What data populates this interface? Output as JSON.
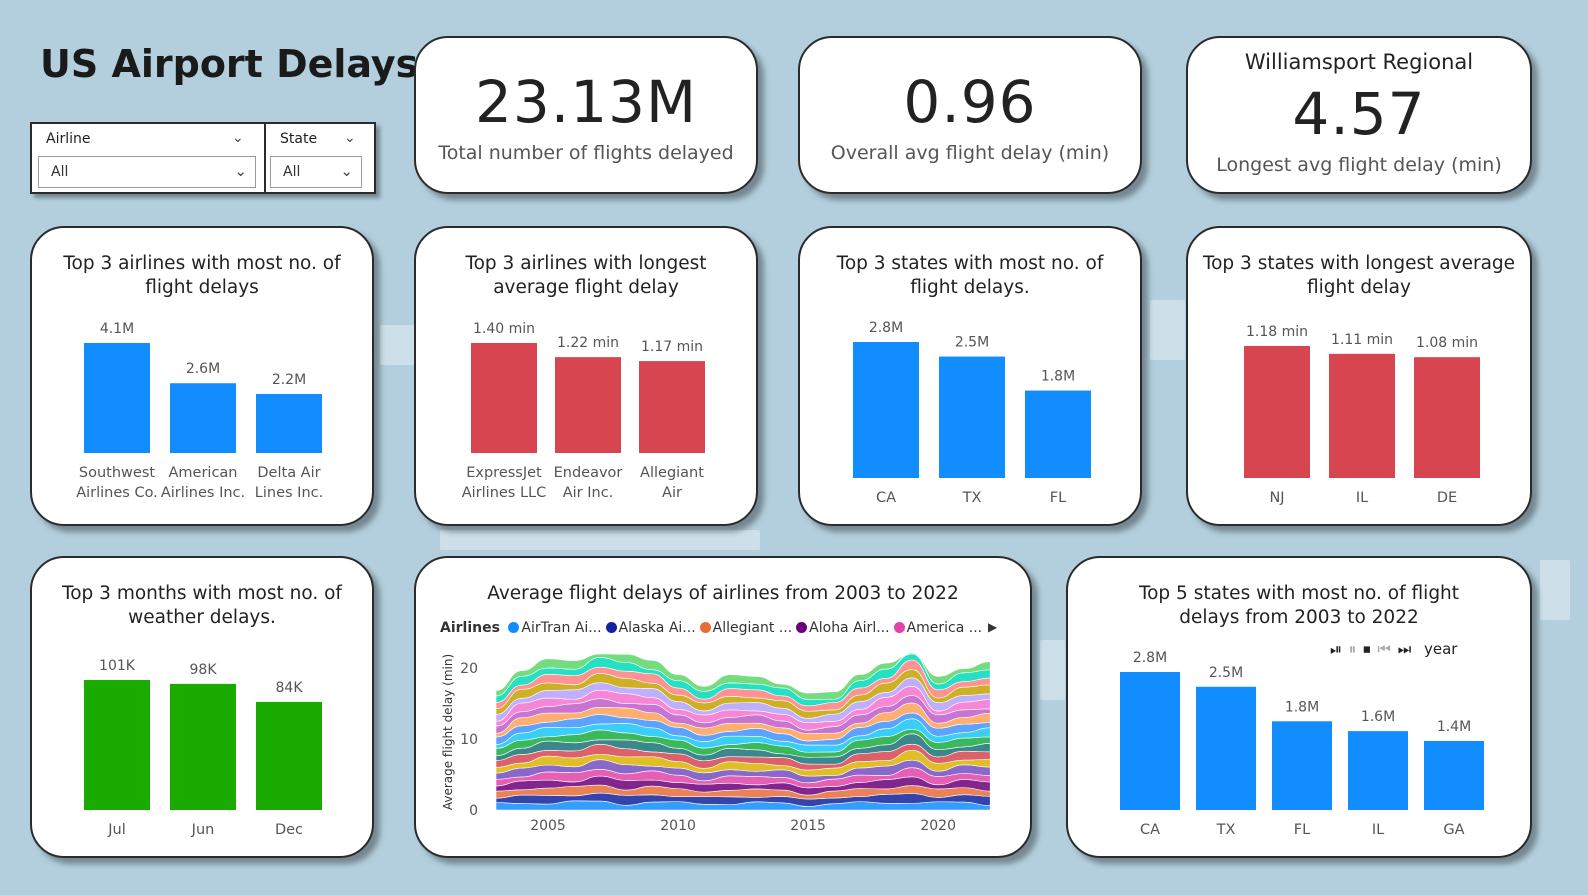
{
  "title": "US Airport Delays",
  "slicers": {
    "airline": {
      "label": "Airline",
      "value": "All"
    },
    "state": {
      "label": "State",
      "value": "All"
    }
  },
  "kpis": {
    "total": {
      "value": "23.13M",
      "label": "Total number of flights delayed"
    },
    "avg": {
      "value": "0.96",
      "label": "Overall avg flight delay (min)"
    },
    "longest": {
      "airport": "Williamsport Regional",
      "value": "4.57",
      "label": "Longest avg flight delay (min)"
    }
  },
  "colors": {
    "blue": "#118dff",
    "red": "#d64550",
    "green": "#1aab00"
  },
  "icons": [
    "play-icon",
    "pause-icon",
    "stop-icon",
    "previous-icon",
    "next-icon",
    "chevron-down-icon",
    "chevron-right-icon"
  ],
  "charts": {
    "top_airlines_delays": {
      "title": "Top 3 airlines with most no. of flight delays",
      "color": "#118dff",
      "chart_data": {
        "type": "bar",
        "categories": [
          "Southwest Airlines Co.",
          "American Airlines Inc.",
          "Delta Air Lines Inc."
        ],
        "category_lines": [
          [
            "Southwest",
            "Airlines Co."
          ],
          [
            "American",
            "Airlines Inc."
          ],
          [
            "Delta Air",
            "Lines Inc."
          ]
        ],
        "values": [
          4.1,
          2.6,
          2.2
        ],
        "labels": [
          "4.1M",
          "2.6M",
          "2.2M"
        ],
        "ylim": [
          0,
          4.1
        ]
      }
    },
    "top_airlines_longest": {
      "title": "Top 3 airlines with longest average flight delay",
      "color": "#d64550",
      "chart_data": {
        "type": "bar",
        "categories": [
          "ExpressJet Airlines LLC",
          "Endeavor Air Inc.",
          "Allegiant Air"
        ],
        "category_lines": [
          [
            "ExpressJet",
            "Airlines LLC"
          ],
          [
            "Endeavor",
            "Air Inc."
          ],
          [
            "Allegiant",
            "Air"
          ]
        ],
        "values": [
          1.4,
          1.22,
          1.17
        ],
        "labels": [
          "1.40 min",
          "1.22 min",
          "1.17 min"
        ],
        "ylim": [
          0,
          1.4
        ]
      }
    },
    "top_states_delays": {
      "title": "Top 3 states with most no. of flight delays.",
      "color": "#118dff",
      "chart_data": {
        "type": "bar",
        "categories": [
          "CA",
          "TX",
          "FL"
        ],
        "values": [
          2.8,
          2.5,
          1.8
        ],
        "labels": [
          "2.8M",
          "2.5M",
          "1.8M"
        ],
        "ylim": [
          0,
          2.8
        ]
      }
    },
    "top_states_longest": {
      "title": "Top 3 states with longest average flight delay",
      "color": "#d64550",
      "chart_data": {
        "type": "bar",
        "categories": [
          "NJ",
          "IL",
          "DE"
        ],
        "values": [
          1.18,
          1.11,
          1.08
        ],
        "labels": [
          "1.18 min",
          "1.11 min",
          "1.08 min"
        ],
        "ylim": [
          0,
          1.18
        ]
      }
    },
    "top_months_weather": {
      "title": "Top 3 months with most no. of weather delays.",
      "color": "#1aab00",
      "chart_data": {
        "type": "bar",
        "categories": [
          "Jul",
          "Jun",
          "Dec"
        ],
        "values": [
          101,
          98,
          84
        ],
        "labels": [
          "101K",
          "98K",
          "84K"
        ],
        "ylim": [
          0,
          101
        ]
      }
    },
    "airline_trend": {
      "title": "Average flight delays of airlines from 2003 to 2022",
      "legend_title": "Airlines",
      "legend": [
        {
          "name": "AirTran Ai...",
          "color": "#118dff"
        },
        {
          "name": "Alaska Ai...",
          "color": "#12239e"
        },
        {
          "name": "Allegiant ...",
          "color": "#e66c37"
        },
        {
          "name": "Aloha Airl...",
          "color": "#6b007b"
        },
        {
          "name": "America ...",
          "color": "#e044a7"
        }
      ],
      "chart_data": {
        "type": "area",
        "stacked": true,
        "ylabel": "Average flight delay (min)",
        "ylim": [
          0,
          22
        ],
        "yticks": [
          "0",
          "10",
          "20"
        ],
        "xticks": [
          "2005",
          "2010",
          "2015",
          "2020"
        ],
        "x": [
          2003,
          2004,
          2005,
          2006,
          2007,
          2008,
          2009,
          2010,
          2011,
          2012,
          2013,
          2014,
          2015,
          2016,
          2017,
          2018,
          2019,
          2020,
          2021,
          2022
        ],
        "stack_total": [
          15,
          18,
          19,
          19,
          20,
          20,
          19,
          17,
          16,
          17,
          17,
          16,
          15,
          15,
          17,
          19,
          21,
          17,
          18,
          19
        ],
        "palette": [
          "#118dff",
          "#12239e",
          "#e66c37",
          "#6b007b",
          "#e044a7",
          "#744ec2",
          "#d9b300",
          "#d64550",
          "#197278",
          "#1aab40",
          "#15c6f4",
          "#4092ff",
          "#ffa058",
          "#be5dc9",
          "#f472d0",
          "#b5a1ff",
          "#c4a200",
          "#ff8080",
          "#00dbbc",
          "#5bd667"
        ]
      }
    },
    "top5_states": {
      "title": "Top 5 states with most no. of flight delays from 2003 to 2022",
      "play_label": "year",
      "color": "#118dff",
      "chart_data": {
        "type": "bar",
        "categories": [
          "CA",
          "TX",
          "FL",
          "IL",
          "GA"
        ],
        "values": [
          2.8,
          2.5,
          1.8,
          1.6,
          1.4
        ],
        "labels": [
          "2.8M",
          "2.5M",
          "1.8M",
          "1.6M",
          "1.4M"
        ],
        "ylim": [
          0,
          2.8
        ]
      }
    }
  }
}
